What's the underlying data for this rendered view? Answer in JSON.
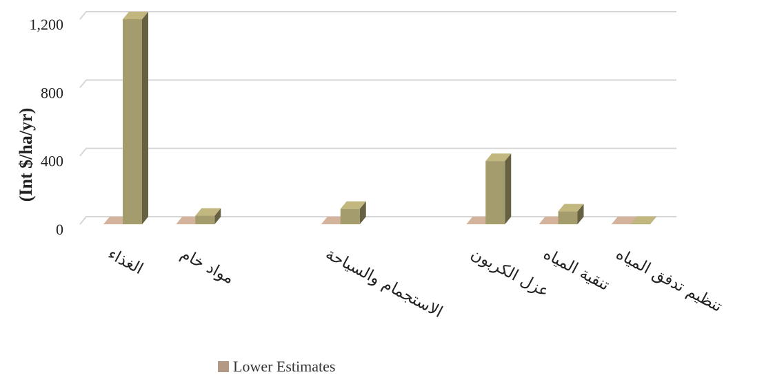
{
  "chart_data": {
    "type": "bar3d",
    "categories": [
      "الغذاء",
      "مواد خام",
      null,
      "الاستجمام والسياحة",
      null,
      "عزل الكربون",
      "تنقية المياه",
      "تنظيم تدفق المياه"
    ],
    "series": [
      {
        "name": "Lower Estimates",
        "color": "#b39883",
        "values": [
          0,
          0,
          null,
          0,
          null,
          0,
          0,
          0
        ]
      },
      {
        "color": "#a49c6c",
        "values": [
          1200,
          50,
          null,
          90,
          null,
          370,
          75,
          2
        ]
      }
    ],
    "ylabel": "(Int $/ha/yr)",
    "ylim": [
      0,
      1200
    ],
    "yticks": [
      0,
      400,
      800,
      {
        "value": 1200,
        "label": "1,200"
      }
    ],
    "grid": true,
    "legend": "bottom"
  }
}
